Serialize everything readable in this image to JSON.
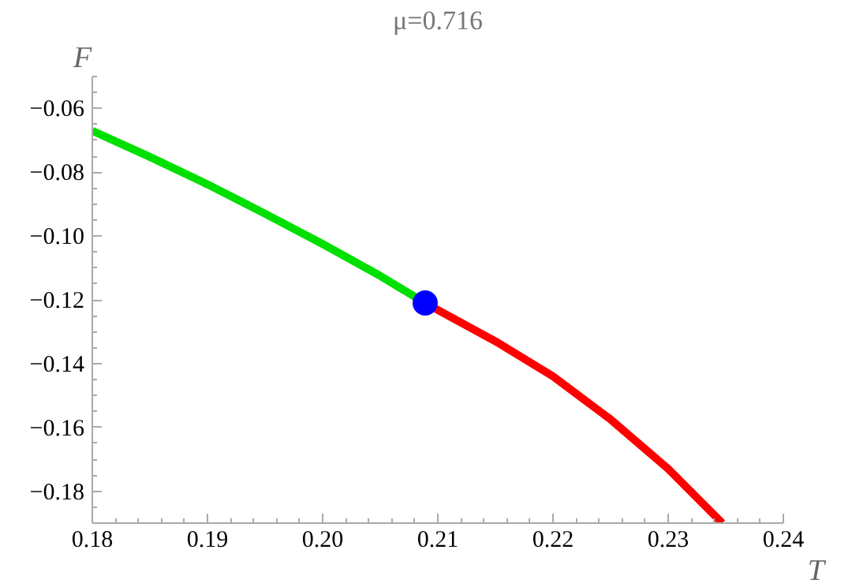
{
  "chart_data": {
    "type": "line",
    "title": "μ=0.716",
    "xlabel": "T",
    "ylabel": "F",
    "xlim": [
      0.18,
      0.24
    ],
    "xticks": [
      {
        "value": 0.18,
        "label": "0.18"
      },
      {
        "value": 0.19,
        "label": "0.19"
      },
      {
        "value": 0.2,
        "label": "0.20"
      },
      {
        "value": 0.21,
        "label": "0.21"
      },
      {
        "value": 0.22,
        "label": "0.22"
      },
      {
        "value": 0.23,
        "label": "0.23"
      },
      {
        "value": 0.24,
        "label": "0.24"
      }
    ],
    "ylim": [
      -0.19,
      -0.05
    ],
    "yticks": [
      {
        "value": -0.18,
        "label": "−0.18"
      },
      {
        "value": -0.16,
        "label": "−0.16"
      },
      {
        "value": -0.14,
        "label": "−0.14"
      },
      {
        "value": -0.12,
        "label": "−0.12"
      },
      {
        "value": -0.1,
        "label": "−0.10"
      },
      {
        "value": -0.08,
        "label": "−0.08"
      },
      {
        "value": -0.06,
        "label": "−0.06"
      }
    ],
    "grid": false,
    "line_style": "solid",
    "series": [
      {
        "color": "#00e000",
        "x": [
          0.18,
          0.185,
          0.19,
          0.195,
          0.2,
          0.205,
          0.2089
        ],
        "values": [
          -0.067,
          -0.0752,
          -0.0838,
          -0.093,
          -0.1025,
          -0.1125,
          -0.121
        ]
      },
      {
        "color": "#ff0000",
        "x": [
          0.2089,
          0.21,
          0.215,
          0.22,
          0.225,
          0.23,
          0.2347
        ],
        "values": [
          -0.121,
          -0.1232,
          -0.133,
          -0.144,
          -0.1575,
          -0.173,
          -0.19
        ]
      },
      {
        "type": "scatter",
        "color": "#0000ff",
        "marker": "circle",
        "x": [
          0.2089
        ],
        "values": [
          -0.121
        ]
      }
    ]
  }
}
